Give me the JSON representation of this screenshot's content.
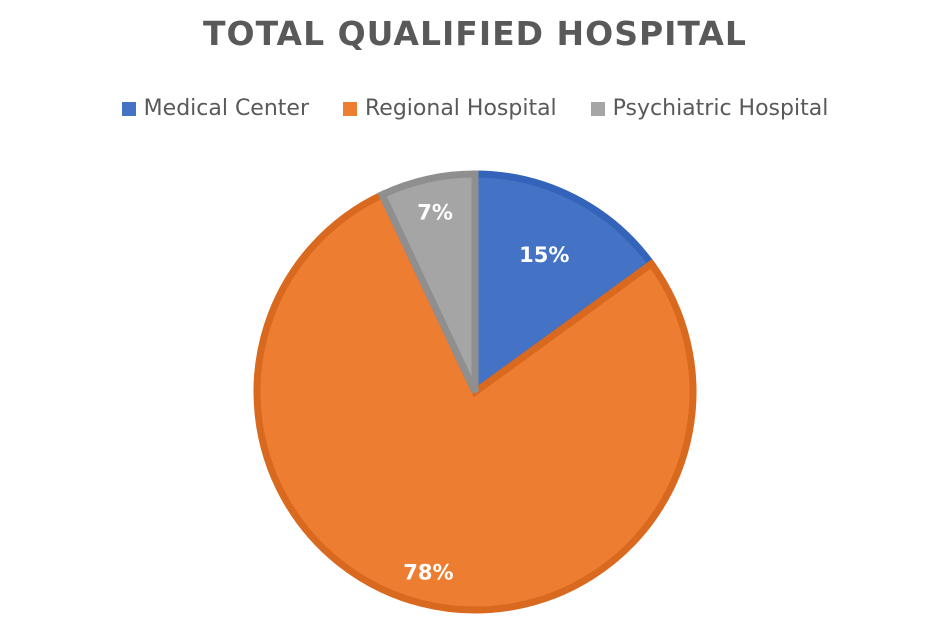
{
  "chart_data": {
    "type": "pie",
    "title": "TOTAL QUALIFIED HOSPITAL",
    "legend_position": "top",
    "slices": [
      {
        "label": "Medical Center",
        "value": 15,
        "display": "15%",
        "color": "#4472C4",
        "border": "#3463BA"
      },
      {
        "label": "Regional Hospital",
        "value": 78,
        "display": "78%",
        "color": "#ED7D31",
        "border": "#D9691F"
      },
      {
        "label": "Psychiatric Hospital",
        "value": 7,
        "display": "7%",
        "color": "#A5A5A5",
        "border": "#8F8F8F"
      }
    ]
  }
}
